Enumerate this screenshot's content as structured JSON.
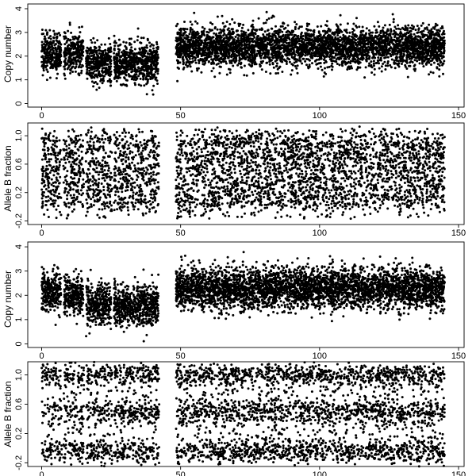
{
  "chart_data": [
    {
      "type": "scatter",
      "title": "",
      "xlabel": "",
      "ylabel": "Copy number",
      "xlim": [
        -5,
        152
      ],
      "ylim": [
        -0.15,
        4.2
      ],
      "xticks": [
        0,
        50,
        100,
        150
      ],
      "yticks": [
        0,
        1,
        2,
        3,
        4
      ],
      "xtick_labels": [
        "0",
        "50",
        "100",
        "150"
      ],
      "ytick_labels": [
        "0",
        "1",
        "2",
        "3",
        "4"
      ],
      "grid": false,
      "point_color": "#000000",
      "regions": [
        {
          "x": [
            0,
            7
          ],
          "y_center": 2.1
        },
        {
          "x": [
            8,
            15
          ],
          "y_center": 2.1
        },
        {
          "x": [
            16,
            25
          ],
          "y_center": 1.7
        },
        {
          "x": [
            26,
            42
          ],
          "y_center": 1.7
        },
        {
          "x": [
            48,
            145
          ],
          "y_center": 2.4
        }
      ]
    },
    {
      "type": "scatter",
      "title": "",
      "xlabel": "",
      "ylabel": "Allele B fraction",
      "xlim": [
        -5,
        152
      ],
      "ylim": [
        -0.25,
        1.18
      ],
      "xticks": [
        0,
        50,
        100,
        150
      ],
      "yticks": [
        -0.2,
        0.2,
        0.6,
        1.0
      ],
      "xtick_labels": [
        "0",
        "50",
        "100",
        "150"
      ],
      "ytick_labels": [
        "-0.2",
        "0.2",
        "0.6",
        "1.0"
      ],
      "grid": false,
      "point_color": "#000000",
      "bands": [
        0.1,
        0.3,
        0.5,
        0.7,
        0.9
      ]
    },
    {
      "type": "scatter",
      "title": "",
      "xlabel": "",
      "ylabel": "Copy number",
      "xlim": [
        -5,
        152
      ],
      "ylim": [
        -0.15,
        4.2
      ],
      "xticks": [
        0,
        50,
        100,
        150
      ],
      "yticks": [
        0,
        1,
        2,
        3,
        4
      ],
      "xtick_labels": [
        "0",
        "50",
        "100",
        "150"
      ],
      "ytick_labels": [
        "0",
        "1",
        "2",
        "3",
        "4"
      ],
      "grid": false,
      "point_color": "#000000",
      "regions": [
        {
          "x": [
            0,
            7
          ],
          "y_center": 2.1
        },
        {
          "x": [
            8,
            15
          ],
          "y_center": 2.0
        },
        {
          "x": [
            16,
            25
          ],
          "y_center": 1.6
        },
        {
          "x": [
            26,
            42
          ],
          "y_center": 1.6
        },
        {
          "x": [
            48,
            145
          ],
          "y_center": 2.3
        }
      ]
    },
    {
      "type": "scatter",
      "title": "",
      "xlabel": "",
      "ylabel": "Allele B fraction",
      "xlim": [
        -5,
        152
      ],
      "ylim": [
        -0.25,
        1.18
      ],
      "xticks": [
        0,
        50,
        100,
        150
      ],
      "yticks": [
        -0.2,
        0.2,
        0.6,
        1.0
      ],
      "xtick_labels": [
        "0",
        "50",
        "100",
        "150"
      ],
      "ytick_labels": [
        "-0.2",
        "0.2",
        "0.6",
        "1.0"
      ],
      "grid": false,
      "point_color": "#000000",
      "bands": [
        -0.05,
        0.5,
        1.0
      ]
    }
  ]
}
